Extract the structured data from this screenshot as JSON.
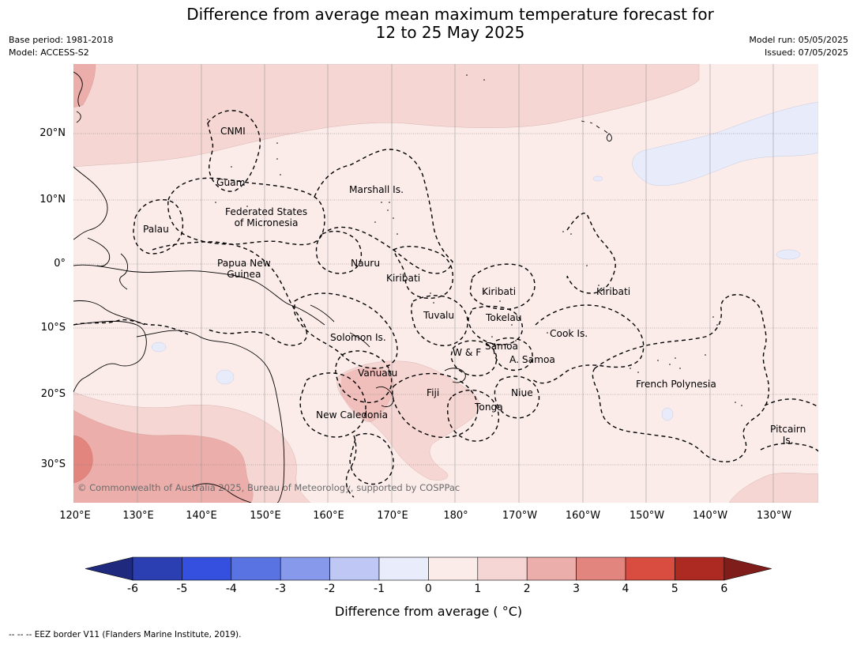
{
  "header": {
    "title_line1": "Difference from average mean maximum temperature forecast for",
    "title_line2": "12 to 25 May 2025",
    "base_period": "Base period: 1981-2018",
    "model": "Model: ACCESS-S2",
    "model_run": "Model run: 05/05/2025",
    "issued": "Issued: 07/05/2025"
  },
  "map": {
    "lat_labels": [
      "20°N",
      "10°N",
      "0°",
      "10°S",
      "20°S",
      "30°S"
    ],
    "lon_labels": [
      "120°E",
      "130°E",
      "140°E",
      "150°E",
      "160°E",
      "170°E",
      "180°",
      "170°W",
      "160°W",
      "150°W",
      "140°W",
      "130°W"
    ],
    "copyright": "© Commonwealth of Australia 2025, Bureau of Meteorology, supported by COSPPac",
    "places": {
      "cnmi": "CNMI",
      "guam": "Guam",
      "marshall": "Marshall Is.",
      "fsm1": "Federated States",
      "fsm2": "of Micronesia",
      "palau": "Palau",
      "png1": "Papua New",
      "png2": "Guinea",
      "nauru": "Nauru",
      "kiribati_w": "Kiribati",
      "kiribati_c": "Kiribati",
      "kiribati_e": "Kiribati",
      "tuvalu": "Tuvalu",
      "tokelau": "Tokelau",
      "cook": "Cook Is.",
      "solomon": "Solomon Is.",
      "wf": "W & F",
      "samoa": "Samoa",
      "asamoa": "A. Samoa",
      "vanuatu": "Vanuatu",
      "fiji": "Fiji",
      "niue": "Niue",
      "tonga": "Tonga",
      "newcal": "New Caledonia",
      "frpoly": "French Polynesia",
      "pitcairn1": "Pitcairn",
      "pitcairn2": "Is."
    },
    "colors": {
      "ocean_0_1": "#fbecea",
      "pos_1_2": "#f5d6d3",
      "pos_2_3": "#ecaeaa",
      "pos_3_4": "#e3857f",
      "neg_m1_0": "#e8ecfa"
    }
  },
  "colorbar": {
    "ticks": [
      "-6",
      "-5",
      "-4",
      "-3",
      "-2",
      "-1",
      "0",
      "1",
      "2",
      "3",
      "4",
      "5",
      "6"
    ],
    "colors": [
      "#1f2a7f",
      "#2b3fb3",
      "#3550df",
      "#5a73e3",
      "#8799ea",
      "#bfc7f4",
      "#e8ecfb",
      "#fbecea",
      "#f5d6d4",
      "#ecaeaa",
      "#e3857f",
      "#d94c40",
      "#ad2a22",
      "#7e1d1a"
    ],
    "title": "Difference from average ( °C)"
  },
  "footer": {
    "legend": "--  --  -- EEZ border V11 (Flanders Marine Institute, 2019)."
  }
}
